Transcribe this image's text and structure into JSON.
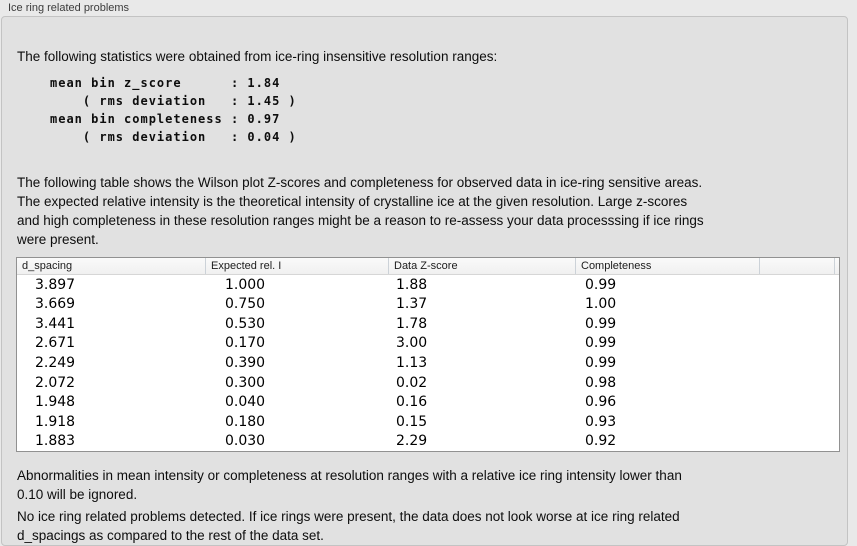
{
  "panel": {
    "title": "Ice ring related problems"
  },
  "intro": "The following statistics were obtained from ice-ring insensitive resolution ranges:",
  "stats_block": "mean bin z_score      : 1.84\n    ( rms deviation   : 1.45 )\nmean bin completeness : 0.97\n    ( rms deviation   : 0.04 )",
  "table_intro": "The following table shows the Wilson plot Z-scores and completeness for observed data in ice-ring sensitive areas.\nThe expected relative intensity is the theoretical intensity of crystalline ice at the given resolution. Large z-scores\nand high completeness in these resolution ranges might be a reason to re-assess your data processsing if ice rings\nwere present.",
  "table": {
    "columns": [
      "d_spacing",
      "Expected rel. I",
      "Data Z-score",
      "Completeness"
    ],
    "rows": [
      [
        "3.897",
        "1.000",
        "1.88",
        "0.99"
      ],
      [
        "3.669",
        "0.750",
        "1.37",
        "1.00"
      ],
      [
        "3.441",
        "0.530",
        "1.78",
        "0.99"
      ],
      [
        "2.671",
        "0.170",
        "3.00",
        "0.99"
      ],
      [
        "2.249",
        "0.390",
        "1.13",
        "0.99"
      ],
      [
        "2.072",
        "0.300",
        "0.02",
        "0.98"
      ],
      [
        "1.948",
        "0.040",
        "0.16",
        "0.96"
      ],
      [
        "1.918",
        "0.180",
        "0.15",
        "0.93"
      ],
      [
        "1.883",
        "0.030",
        "2.29",
        "0.92"
      ]
    ]
  },
  "note_ignore": "Abnormalities in mean intensity or completeness at resolution ranges with a relative ice ring intensity lower than\n0.10 will be ignored.",
  "conclusion": "No ice ring related problems detected. If ice rings were present, the data does not look worse at ice ring related\nd_spacings as compared to the rest of the data set."
}
